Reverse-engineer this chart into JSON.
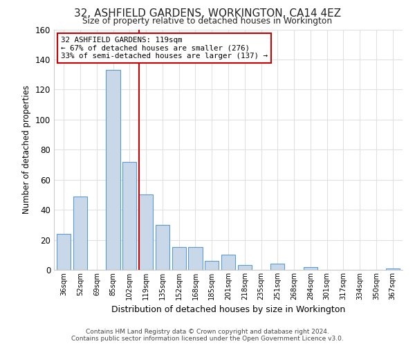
{
  "title": "32, ASHFIELD GARDENS, WORKINGTON, CA14 4EZ",
  "subtitle": "Size of property relative to detached houses in Workington",
  "xlabel": "Distribution of detached houses by size in Workington",
  "ylabel": "Number of detached properties",
  "bar_color": "#c8d8e8",
  "bar_edge_color": "#5b9bd5",
  "background_color": "#ffffff",
  "grid_color": "#e0e0e0",
  "categories": [
    "36sqm",
    "52sqm",
    "69sqm",
    "85sqm",
    "102sqm",
    "119sqm",
    "135sqm",
    "152sqm",
    "168sqm",
    "185sqm",
    "201sqm",
    "218sqm",
    "235sqm",
    "251sqm",
    "268sqm",
    "284sqm",
    "301sqm",
    "317sqm",
    "334sqm",
    "350sqm",
    "367sqm"
  ],
  "values": [
    24,
    49,
    0,
    133,
    72,
    50,
    30,
    15,
    15,
    6,
    10,
    3,
    0,
    4,
    0,
    2,
    0,
    0,
    0,
    0,
    1
  ],
  "ylim": [
    0,
    160
  ],
  "yticks": [
    0,
    20,
    40,
    60,
    80,
    100,
    120,
    140,
    160
  ],
  "property_line_index": 5,
  "property_line_color": "#cc0000",
  "annotation_line1": "32 ASHFIELD GARDENS: 119sqm",
  "annotation_line2": "← 67% of detached houses are smaller (276)",
  "annotation_line3": "33% of semi-detached houses are larger (137) →",
  "annotation_box_color": "#ffffff",
  "annotation_box_edge_color": "#cc0000",
  "footer_line1": "Contains HM Land Registry data © Crown copyright and database right 2024.",
  "footer_line2": "Contains public sector information licensed under the Open Government Licence v3.0."
}
